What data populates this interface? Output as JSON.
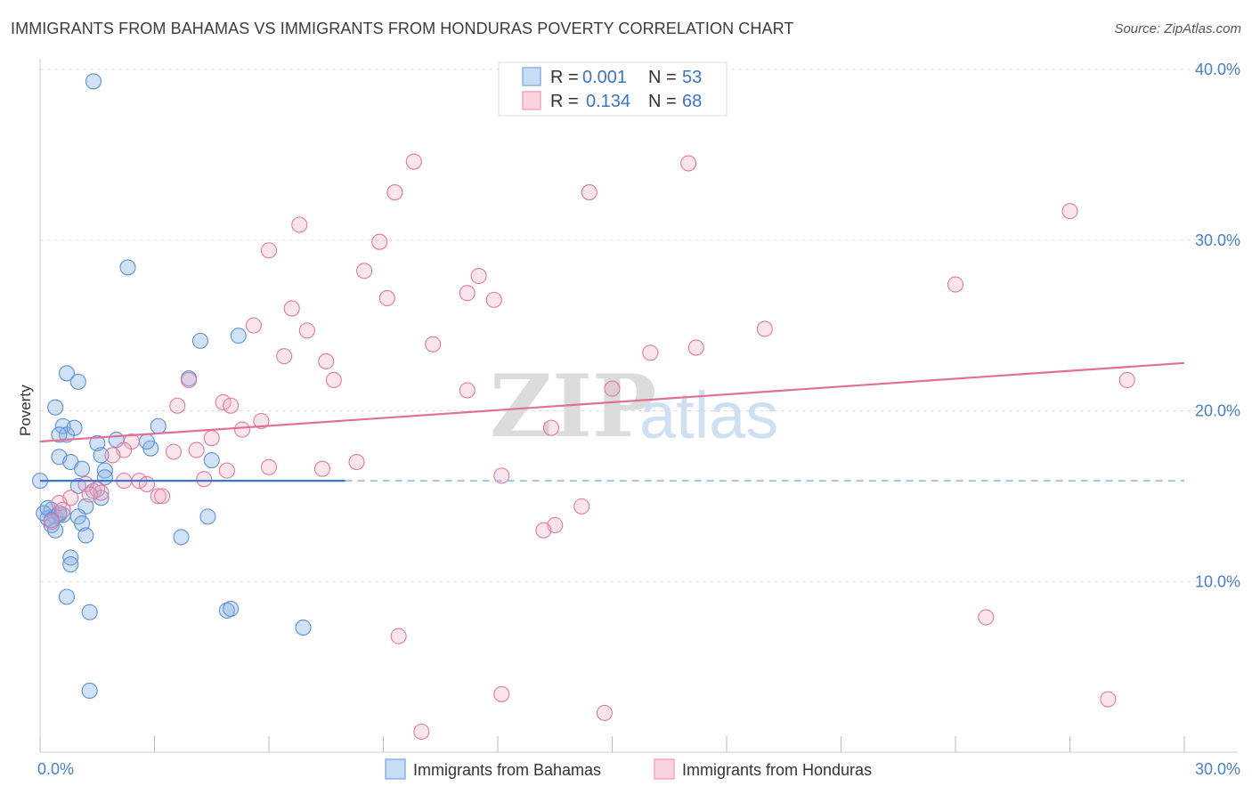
{
  "header": {
    "title": "IMMIGRANTS FROM BAHAMAS VS IMMIGRANTS FROM HONDURAS POVERTY CORRELATION CHART",
    "source": "Source: ZipAtlas.com"
  },
  "watermark": {
    "zip": "ZIP",
    "atlas": "atlas"
  },
  "stats": [
    {
      "r_label": "R =",
      "r_value": "0.001",
      "n_label": "N =",
      "n_value": "53",
      "color": "#8ab3e8"
    },
    {
      "r_label": "R =",
      "r_value": "0.134",
      "n_label": "N =",
      "n_value": "68",
      "color": "#f2a8c0"
    }
  ],
  "chart_data": {
    "type": "scatter",
    "title": "IMMIGRANTS FROM BAHAMAS VS IMMIGRANTS FROM HONDURAS POVERTY CORRELATION CHART",
    "xlabel": "",
    "ylabel": "Poverty",
    "xlim": [
      0,
      30
    ],
    "ylim": [
      0,
      40
    ],
    "x_ticks": [
      "0.0%",
      "30.0%"
    ],
    "y_ticks": [
      {
        "value": 10,
        "label": "10.0%"
      },
      {
        "value": 20,
        "label": "20.0%"
      },
      {
        "value": 30,
        "label": "30.0%"
      },
      {
        "value": 40,
        "label": "40.0%"
      }
    ],
    "grid": true,
    "legend_position": "bottom-center",
    "series": [
      {
        "name": "Immigrants from Bahamas",
        "color": "#8ab3e8",
        "stroke": "#5b8fd6",
        "trend": {
          "x0": 0,
          "y0": 15.9,
          "x1": 8,
          "y1": 15.9,
          "dashed_to": 30
        },
        "points": [
          [
            1.4,
            39.3
          ],
          [
            2.3,
            28.4
          ],
          [
            0.7,
            22.2
          ],
          [
            1.0,
            21.7
          ],
          [
            0.4,
            20.2
          ],
          [
            0.6,
            19.1
          ],
          [
            0.7,
            18.6
          ],
          [
            0.5,
            17.3
          ],
          [
            0.8,
            17.0
          ],
          [
            1.5,
            18.1
          ],
          [
            1.6,
            17.4
          ],
          [
            1.7,
            16.5
          ],
          [
            1.1,
            16.6
          ],
          [
            1.0,
            15.6
          ],
          [
            1.4,
            15.3
          ],
          [
            1.6,
            14.9
          ],
          [
            1.2,
            14.4
          ],
          [
            1.0,
            13.8
          ],
          [
            1.1,
            13.4
          ],
          [
            0.5,
            13.9
          ],
          [
            0.3,
            14.2
          ],
          [
            0.2,
            13.7
          ],
          [
            0.1,
            14.0
          ],
          [
            0.3,
            13.3
          ],
          [
            0.4,
            13.8
          ],
          [
            0.6,
            13.9
          ],
          [
            0.4,
            13.0
          ],
          [
            0.0,
            15.9
          ],
          [
            1.2,
            12.7
          ],
          [
            0.8,
            11.4
          ],
          [
            0.8,
            11.0
          ],
          [
            0.7,
            9.1
          ],
          [
            1.3,
            8.2
          ],
          [
            1.3,
            3.6
          ],
          [
            3.1,
            19.1
          ],
          [
            2.9,
            17.8
          ],
          [
            2.8,
            18.2
          ],
          [
            3.9,
            21.9
          ],
          [
            4.2,
            24.1
          ],
          [
            4.5,
            17.1
          ],
          [
            5.2,
            24.4
          ],
          [
            4.4,
            13.8
          ],
          [
            3.7,
            12.6
          ],
          [
            4.9,
            8.3
          ],
          [
            5.0,
            8.4
          ],
          [
            6.9,
            7.3
          ],
          [
            0.5,
            18.6
          ],
          [
            0.9,
            19.0
          ],
          [
            2.0,
            18.3
          ],
          [
            1.7,
            16.1
          ],
          [
            0.2,
            14.3
          ],
          [
            0.5,
            14.0
          ],
          [
            0.3,
            13.6
          ]
        ]
      },
      {
        "name": "Immigrants from Honduras",
        "color": "#f2a8c0",
        "stroke": "#e07a9c",
        "trend": {
          "x0": 0,
          "y0": 18.2,
          "x1": 30,
          "y1": 22.8
        },
        "points": [
          [
            9.8,
            34.6
          ],
          [
            9.3,
            32.8
          ],
          [
            14.4,
            32.8
          ],
          [
            17.0,
            34.5
          ],
          [
            27.0,
            31.7
          ],
          [
            6.8,
            30.9
          ],
          [
            8.9,
            29.9
          ],
          [
            6.0,
            29.4
          ],
          [
            8.5,
            28.2
          ],
          [
            11.5,
            27.9
          ],
          [
            24.0,
            27.4
          ],
          [
            11.2,
            26.9
          ],
          [
            9.1,
            26.6
          ],
          [
            11.9,
            26.5
          ],
          [
            6.6,
            26.0
          ],
          [
            5.6,
            25.0
          ],
          [
            7.0,
            24.7
          ],
          [
            19.0,
            24.8
          ],
          [
            10.3,
            23.9
          ],
          [
            16.0,
            23.4
          ],
          [
            17.2,
            23.7
          ],
          [
            6.4,
            23.2
          ],
          [
            7.5,
            22.9
          ],
          [
            7.7,
            21.8
          ],
          [
            3.9,
            21.8
          ],
          [
            11.2,
            21.2
          ],
          [
            15.0,
            21.3
          ],
          [
            28.5,
            21.8
          ],
          [
            4.8,
            20.5
          ],
          [
            3.6,
            20.3
          ],
          [
            5.0,
            20.3
          ],
          [
            5.8,
            19.4
          ],
          [
            5.3,
            18.9
          ],
          [
            13.4,
            19.0
          ],
          [
            4.5,
            18.4
          ],
          [
            2.4,
            18.2
          ],
          [
            2.2,
            17.7
          ],
          [
            3.5,
            17.6
          ],
          [
            4.1,
            17.7
          ],
          [
            1.9,
            17.4
          ],
          [
            8.3,
            17.0
          ],
          [
            6.0,
            16.7
          ],
          [
            7.4,
            16.6
          ],
          [
            4.9,
            16.5
          ],
          [
            12.1,
            16.2
          ],
          [
            2.2,
            15.9
          ],
          [
            2.6,
            15.9
          ],
          [
            4.3,
            16.0
          ],
          [
            2.8,
            15.7
          ],
          [
            1.5,
            15.4
          ],
          [
            1.2,
            15.7
          ],
          [
            1.6,
            15.2
          ],
          [
            3.1,
            15.0
          ],
          [
            3.2,
            15.0
          ],
          [
            0.8,
            14.9
          ],
          [
            0.5,
            14.6
          ],
          [
            14.2,
            14.4
          ],
          [
            13.5,
            13.3
          ],
          [
            13.2,
            13.0
          ],
          [
            9.4,
            6.8
          ],
          [
            24.8,
            7.9
          ],
          [
            12.1,
            3.4
          ],
          [
            14.8,
            2.3
          ],
          [
            28.0,
            3.1
          ],
          [
            10.0,
            1.2
          ],
          [
            0.3,
            13.5
          ],
          [
            0.6,
            14.2
          ],
          [
            1.3,
            15.1
          ]
        ]
      }
    ]
  }
}
